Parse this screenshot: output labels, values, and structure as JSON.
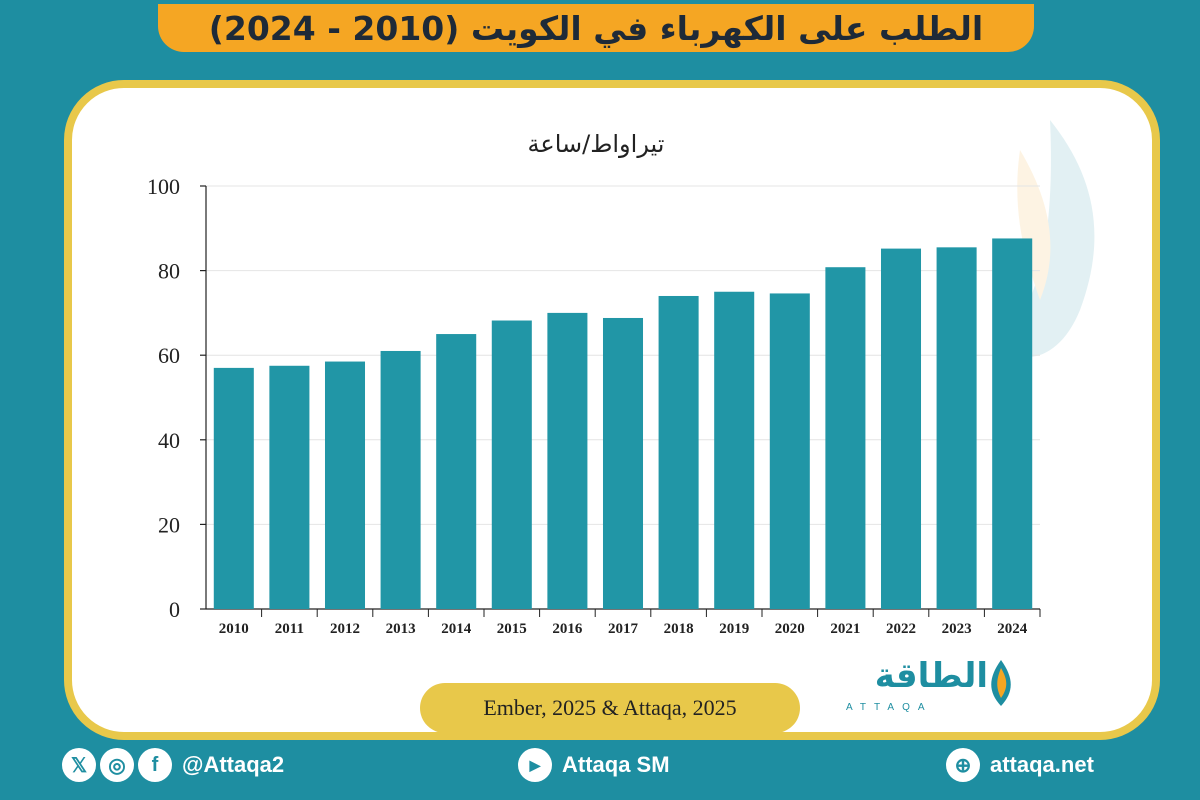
{
  "title": "الطلب على الكهرباء في الكويت (2010 - 2024)",
  "source": "Ember, 2025 & Attaqa, 2025",
  "logo": {
    "arabic": "الطاقة",
    "english": "ATTAQA"
  },
  "footer": {
    "social_handle": "@Attaqa2",
    "youtube": "Attaqa SM",
    "website": "attaqa.net"
  },
  "colors": {
    "bar": "#2196a6",
    "background": "#1e8ea1",
    "accent": "#f5a623",
    "border": "#e8c84a"
  },
  "chart_data": {
    "type": "bar",
    "title": "",
    "ylabel": "تيراواط/ساعة",
    "xlabel": "",
    "categories": [
      "2010",
      "2011",
      "2012",
      "2013",
      "2014",
      "2015",
      "2016",
      "2017",
      "2018",
      "2019",
      "2020",
      "2021",
      "2022",
      "2023",
      "2024"
    ],
    "values": [
      57,
      57.5,
      58.5,
      61,
      65,
      68.2,
      70,
      68.8,
      74,
      75,
      74.6,
      80.8,
      85.2,
      85.5,
      87.6
    ],
    "ylim": [
      0,
      100
    ],
    "yticks": [
      0,
      20,
      40,
      60,
      80,
      100
    ],
    "grid": true,
    "legend": "none"
  }
}
